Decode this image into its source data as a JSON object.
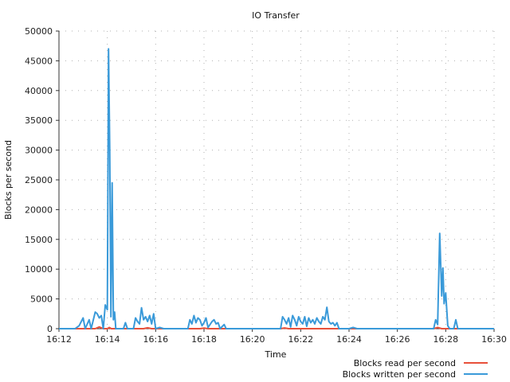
{
  "chart_data": {
    "type": "line",
    "title": "IO Transfer",
    "xlabel": "Time",
    "ylabel": "Blocks per second",
    "x_ticks": [
      "16:12",
      "16:14",
      "16:16",
      "16:18",
      "16:20",
      "16:22",
      "16:24",
      "16:26",
      "16:28",
      "16:30"
    ],
    "xlim": [
      "16:12",
      "16:30"
    ],
    "ylim": [
      0,
      50000
    ],
    "y_ticks": [
      0,
      5000,
      10000,
      15000,
      20000,
      25000,
      30000,
      35000,
      40000,
      45000,
      50000
    ],
    "grid": true,
    "legend_position": "bottom-right",
    "series": [
      {
        "name": "Blocks read per second",
        "color": "#e8503a",
        "points": [
          [
            "16:12:00",
            0
          ],
          [
            "16:13:30",
            0
          ],
          [
            "16:13:40",
            300
          ],
          [
            "16:13:50",
            0
          ],
          [
            "16:14:00",
            0
          ],
          [
            "16:14:05",
            200
          ],
          [
            "16:14:10",
            0
          ],
          [
            "16:15:30",
            0
          ],
          [
            "16:15:40",
            150
          ],
          [
            "16:15:50",
            0
          ],
          [
            "16:17:50",
            0
          ],
          [
            "16:18:00",
            100
          ],
          [
            "16:18:10",
            0
          ],
          [
            "16:21:10",
            0
          ],
          [
            "16:21:20",
            120
          ],
          [
            "16:21:30",
            0
          ],
          [
            "16:27:30",
            0
          ],
          [
            "16:27:40",
            200
          ],
          [
            "16:27:50",
            0
          ],
          [
            "16:30:00",
            0
          ]
        ]
      },
      {
        "name": "Blocks written per second",
        "color": "#3a9ad9",
        "points": [
          [
            "16:12:00",
            0
          ],
          [
            "16:12:40",
            0
          ],
          [
            "16:12:50",
            500
          ],
          [
            "16:13:00",
            1800
          ],
          [
            "16:13:05",
            0
          ],
          [
            "16:13:15",
            1500
          ],
          [
            "16:13:20",
            0
          ],
          [
            "16:13:30",
            2800
          ],
          [
            "16:13:35",
            2500
          ],
          [
            "16:13:40",
            1800
          ],
          [
            "16:13:45",
            2200
          ],
          [
            "16:13:50",
            0
          ],
          [
            "16:13:55",
            4000
          ],
          [
            "16:14:00",
            3200
          ],
          [
            "16:14:03",
            47000
          ],
          [
            "16:14:06",
            30000
          ],
          [
            "16:14:09",
            2000
          ],
          [
            "16:14:12",
            24500
          ],
          [
            "16:14:15",
            1500
          ],
          [
            "16:14:18",
            2800
          ],
          [
            "16:14:21",
            0
          ],
          [
            "16:14:40",
            0
          ],
          [
            "16:14:45",
            1000
          ],
          [
            "16:14:50",
            0
          ],
          [
            "16:15:05",
            0
          ],
          [
            "16:15:10",
            1800
          ],
          [
            "16:15:15",
            1200
          ],
          [
            "16:15:20",
            800
          ],
          [
            "16:15:25",
            3500
          ],
          [
            "16:15:30",
            1500
          ],
          [
            "16:15:35",
            2000
          ],
          [
            "16:15:40",
            1200
          ],
          [
            "16:15:45",
            2200
          ],
          [
            "16:15:50",
            800
          ],
          [
            "16:15:55",
            2500
          ],
          [
            "16:16:00",
            0
          ],
          [
            "16:16:10",
            200
          ],
          [
            "16:16:20",
            0
          ],
          [
            "16:17:20",
            0
          ],
          [
            "16:17:25",
            1500
          ],
          [
            "16:17:30",
            800
          ],
          [
            "16:17:35",
            2200
          ],
          [
            "16:17:40",
            1000
          ],
          [
            "16:17:45",
            1800
          ],
          [
            "16:17:50",
            1500
          ],
          [
            "16:17:55",
            500
          ],
          [
            "16:18:00",
            1000
          ],
          [
            "16:18:05",
            1800
          ],
          [
            "16:18:10",
            200
          ],
          [
            "16:18:20",
            1200
          ],
          [
            "16:18:25",
            1500
          ],
          [
            "16:18:30",
            800
          ],
          [
            "16:18:35",
            1000
          ],
          [
            "16:18:40",
            0
          ],
          [
            "16:18:50",
            700
          ],
          [
            "16:18:55",
            0
          ],
          [
            "16:21:10",
            0
          ],
          [
            "16:21:15",
            2000
          ],
          [
            "16:21:20",
            1500
          ],
          [
            "16:21:25",
            800
          ],
          [
            "16:21:30",
            1800
          ],
          [
            "16:21:35",
            300
          ],
          [
            "16:21:40",
            2200
          ],
          [
            "16:21:45",
            1500
          ],
          [
            "16:21:50",
            500
          ],
          [
            "16:21:55",
            2000
          ],
          [
            "16:22:00",
            1200
          ],
          [
            "16:22:05",
            800
          ],
          [
            "16:22:10",
            2000
          ],
          [
            "16:22:15",
            400
          ],
          [
            "16:22:20",
            1800
          ],
          [
            "16:22:25",
            1000
          ],
          [
            "16:22:30",
            1500
          ],
          [
            "16:22:35",
            800
          ],
          [
            "16:22:40",
            1800
          ],
          [
            "16:22:45",
            1200
          ],
          [
            "16:22:50",
            800
          ],
          [
            "16:22:55",
            2000
          ],
          [
            "16:23:00",
            1500
          ],
          [
            "16:23:05",
            3600
          ],
          [
            "16:23:10",
            1200
          ],
          [
            "16:23:15",
            800
          ],
          [
            "16:23:20",
            1000
          ],
          [
            "16:23:25",
            500
          ],
          [
            "16:23:30",
            1000
          ],
          [
            "16:23:35",
            0
          ],
          [
            "16:24:00",
            0
          ],
          [
            "16:24:10",
            200
          ],
          [
            "16:24:20",
            0
          ],
          [
            "16:27:30",
            0
          ],
          [
            "16:27:35",
            1500
          ],
          [
            "16:27:40",
            700
          ],
          [
            "16:27:45",
            16000
          ],
          [
            "16:27:50",
            5500
          ],
          [
            "16:27:53",
            10200
          ],
          [
            "16:27:56",
            4200
          ],
          [
            "16:28:00",
            6000
          ],
          [
            "16:28:05",
            500
          ],
          [
            "16:28:10",
            0
          ],
          [
            "16:28:20",
            0
          ],
          [
            "16:28:25",
            1500
          ],
          [
            "16:28:30",
            0
          ],
          [
            "16:30:00",
            0
          ]
        ]
      }
    ]
  }
}
